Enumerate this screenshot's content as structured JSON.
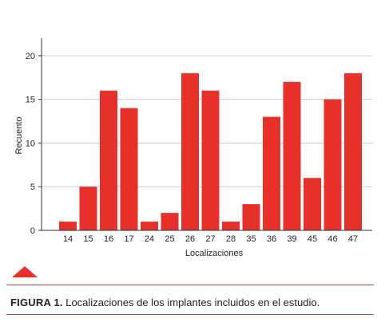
{
  "chart_data": {
    "type": "bar",
    "categories": [
      "14",
      "15",
      "16",
      "17",
      "24",
      "25",
      "26",
      "27",
      "28",
      "35",
      "36",
      "39",
      "45",
      "46",
      "47"
    ],
    "values": [
      1,
      5,
      16,
      14,
      1,
      2,
      18,
      16,
      1,
      3,
      13,
      17,
      6,
      15,
      18
    ],
    "xlabel": "Localizaciones",
    "ylabel": "Recuento",
    "ylim": [
      0,
      22
    ],
    "yticks": [
      0,
      5,
      10,
      15,
      20
    ],
    "grid": true,
    "bar_color": "#e8302b"
  },
  "caption": {
    "label": "FIGURA 1.",
    "text": " Localizaciones de los implantes incluidos en el estudio."
  },
  "colors": {
    "accent": "#e8302b",
    "rule": "#c0392b"
  },
  "decoration": {
    "icon": "triangle-icon"
  }
}
